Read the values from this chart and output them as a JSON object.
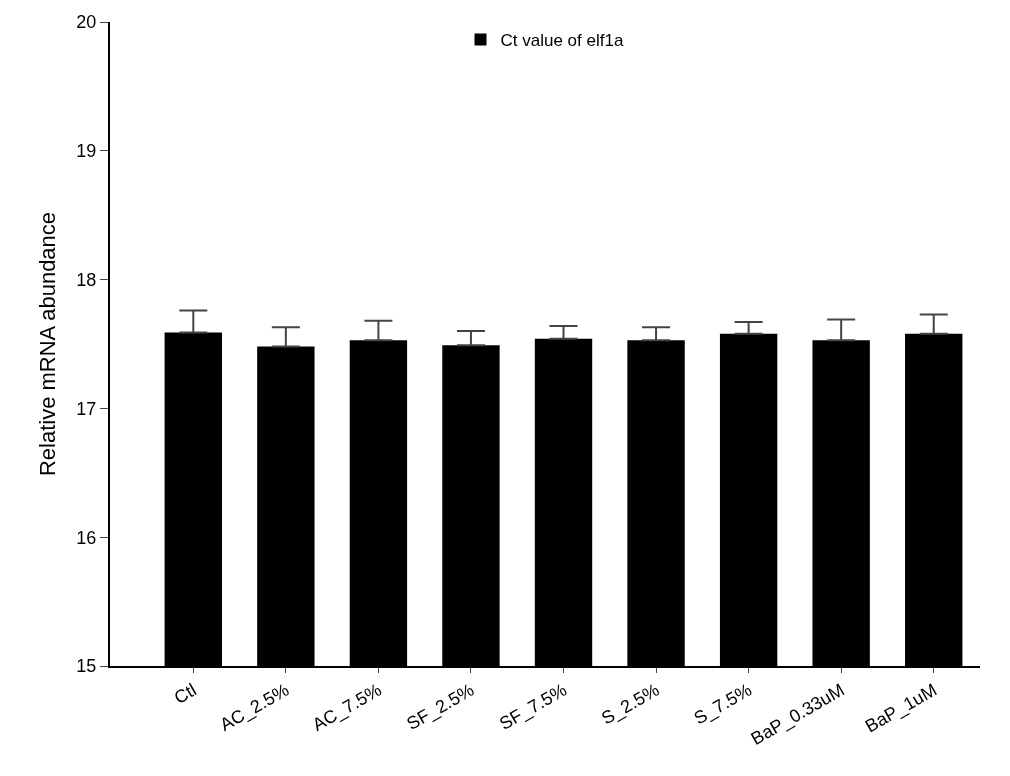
{
  "chart_data": {
    "type": "bar",
    "ylabel": "Relative mRNA abundance",
    "categories": [
      "Ctl",
      "AC_2.5%",
      "AC_7.5%",
      "SF_2.5%",
      "SF_7.5%",
      "S_2.5%",
      "S_7.5%",
      "BaP_0.33uM",
      "BaP_1uM"
    ],
    "series": [
      {
        "name": "Ct value of elf1a",
        "color": "#000000",
        "values": [
          17.59,
          17.48,
          17.53,
          17.49,
          17.54,
          17.53,
          17.58,
          17.53,
          17.58
        ],
        "errors": [
          [
            17.59,
            17.76
          ],
          [
            17.48,
            17.63
          ],
          [
            17.53,
            17.68
          ],
          [
            17.49,
            17.6
          ],
          [
            17.54,
            17.64
          ],
          [
            17.53,
            17.63
          ],
          [
            17.58,
            17.67
          ],
          [
            17.53,
            17.69
          ],
          [
            17.58,
            17.73
          ]
        ]
      }
    ],
    "ylim": [
      15,
      20
    ],
    "yticks": [
      15,
      16,
      17,
      18,
      19,
      20
    ],
    "legend": "top"
  }
}
